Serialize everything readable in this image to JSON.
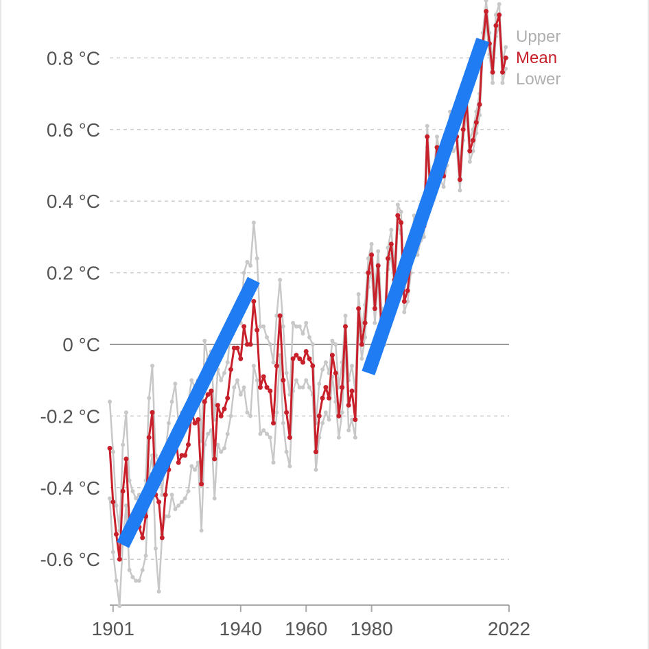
{
  "chart_data": {
    "type": "line",
    "x_ticks": [
      "1901",
      "1940",
      "1960",
      "1980",
      "2022"
    ],
    "y_ticks": [
      {
        "value": 0.8,
        "label": "0.8 °C"
      },
      {
        "value": 0.6,
        "label": "0.6 °C"
      },
      {
        "value": 0.4,
        "label": "0.4 °C"
      },
      {
        "value": 0.2,
        "label": "0.2 °C"
      },
      {
        "value": 0.0,
        "label": "0 °C"
      },
      {
        "value": -0.2,
        "label": "-0.2 °C"
      },
      {
        "value": -0.4,
        "label": "-0.4 °C"
      },
      {
        "value": -0.6,
        "label": "-0.6 °C"
      }
    ],
    "xlim": [
      1900,
      2022
    ],
    "ylim": [
      -0.73,
      0.95
    ],
    "grid": true,
    "legend_position": "right",
    "colors": {
      "mean": "#c8202a",
      "bounds": "#c8c8c8",
      "trend": "#1f7cf2",
      "zero_line": "#999999",
      "grid": "#cccccc"
    },
    "years_start": 1900,
    "mean": [
      -0.29,
      -0.44,
      -0.53,
      -0.6,
      -0.41,
      -0.32,
      -0.5,
      -0.52,
      -0.51,
      -0.51,
      -0.54,
      -0.48,
      -0.26,
      -0.19,
      -0.42,
      -0.44,
      -0.54,
      -0.42,
      -0.35,
      -0.27,
      -0.24,
      -0.33,
      -0.31,
      -0.31,
      -0.28,
      -0.19,
      -0.22,
      -0.21,
      -0.39,
      -0.16,
      -0.14,
      -0.13,
      -0.32,
      -0.17,
      -0.2,
      -0.18,
      -0.15,
      -0.07,
      -0.01,
      -0.01,
      -0.04,
      0.05,
      0.0,
      0.0,
      0.12,
      0.04,
      -0.12,
      -0.09,
      -0.12,
      -0.13,
      -0.22,
      -0.06,
      0.08,
      -0.1,
      -0.19,
      -0.26,
      -0.04,
      -0.03,
      -0.04,
      -0.05,
      -0.02,
      -0.04,
      -0.06,
      -0.3,
      -0.2,
      -0.15,
      -0.12,
      -0.15,
      -0.03,
      -0.08,
      -0.2,
      -0.12,
      0.05,
      -0.17,
      -0.13,
      -0.21,
      0.1,
      0.0,
      0.06,
      0.2,
      0.25,
      0.1,
      0.22,
      0.05,
      0.04,
      0.24,
      0.28,
      0.18,
      0.36,
      0.34,
      0.12,
      0.15,
      0.23,
      0.33,
      0.28,
      0.32,
      0.33,
      0.58,
      0.42,
      0.45,
      0.55,
      0.49,
      0.47,
      0.53,
      0.62,
      0.57,
      0.58,
      0.46,
      0.6,
      0.68,
      0.54,
      0.57,
      0.62,
      0.67,
      0.84,
      0.93,
      0.84,
      0.76,
      0.89,
      0.92,
      0.76,
      0.8
    ],
    "upper": [
      -0.16,
      -0.3,
      -0.45,
      -0.52,
      -0.28,
      -0.19,
      -0.38,
      -0.41,
      -0.43,
      -0.42,
      -0.45,
      -0.38,
      -0.15,
      -0.06,
      -0.31,
      -0.33,
      -0.42,
      -0.3,
      -0.22,
      -0.16,
      -0.11,
      -0.22,
      -0.19,
      -0.19,
      -0.16,
      -0.1,
      -0.12,
      -0.1,
      -0.27,
      0.01,
      -0.04,
      -0.02,
      -0.21,
      -0.07,
      -0.1,
      -0.08,
      -0.05,
      0.04,
      0.08,
      0.08,
      0.06,
      0.2,
      0.23,
      0.22,
      0.34,
      0.24,
      0.05,
      0.05,
      0.02,
      0.0,
      -0.05,
      0.08,
      0.18,
      0.05,
      -0.08,
      -0.14,
      0.06,
      0.05,
      0.05,
      0.03,
      0.06,
      0.02,
      0.0,
      -0.22,
      -0.11,
      -0.07,
      -0.05,
      -0.08,
      0.01,
      0.0,
      -0.12,
      -0.05,
      0.08,
      -0.1,
      -0.06,
      -0.13,
      0.14,
      0.04,
      0.11,
      0.24,
      0.28,
      0.15,
      0.26,
      0.1,
      0.08,
      0.27,
      0.32,
      0.21,
      0.39,
      0.37,
      0.16,
      0.18,
      0.26,
      0.36,
      0.32,
      0.36,
      0.36,
      0.61,
      0.46,
      0.48,
      0.58,
      0.52,
      0.5,
      0.56,
      0.65,
      0.6,
      0.61,
      0.49,
      0.63,
      0.71,
      0.57,
      0.6,
      0.65,
      0.7,
      0.87,
      0.96,
      0.87,
      0.79,
      0.92,
      0.95,
      0.79,
      0.83
    ],
    "lower": [
      -0.43,
      -0.58,
      -0.66,
      -0.73,
      -0.55,
      -0.45,
      -0.63,
      -0.65,
      -0.66,
      -0.66,
      -0.63,
      -0.59,
      -0.36,
      -0.31,
      -0.57,
      -0.69,
      -0.53,
      -0.48,
      -0.48,
      -0.42,
      -0.46,
      -0.45,
      -0.44,
      -0.43,
      -0.41,
      -0.34,
      -0.35,
      -0.33,
      -0.52,
      -0.28,
      -0.25,
      -0.24,
      -0.43,
      -0.28,
      -0.3,
      -0.29,
      -0.25,
      -0.2,
      -0.12,
      -0.1,
      -0.14,
      -0.12,
      -0.19,
      -0.2,
      -0.06,
      -0.1,
      -0.25,
      -0.24,
      -0.25,
      -0.26,
      -0.33,
      -0.19,
      -0.03,
      -0.22,
      -0.3,
      -0.34,
      -0.13,
      -0.1,
      -0.12,
      -0.12,
      -0.1,
      -0.12,
      -0.14,
      -0.35,
      -0.26,
      -0.22,
      -0.19,
      -0.21,
      -0.09,
      -0.16,
      -0.26,
      -0.19,
      0.0,
      -0.24,
      -0.21,
      -0.26,
      0.06,
      -0.04,
      0.02,
      0.16,
      0.21,
      0.06,
      0.18,
      0.01,
      0.0,
      0.21,
      0.25,
      0.15,
      0.33,
      0.31,
      0.09,
      0.12,
      0.2,
      0.3,
      0.25,
      0.29,
      0.3,
      0.55,
      0.39,
      0.42,
      0.52,
      0.46,
      0.44,
      0.5,
      0.59,
      0.54,
      0.55,
      0.43,
      0.57,
      0.65,
      0.51,
      0.54,
      0.59,
      0.64,
      0.81,
      0.9,
      0.81,
      0.73,
      0.86,
      0.89,
      0.73,
      0.77
    ],
    "series": [
      {
        "name": "Upper",
        "color": "#c8c8c8"
      },
      {
        "name": "Mean",
        "color": "#c8202a"
      },
      {
        "name": "Lower",
        "color": "#c8c8c8"
      }
    ],
    "trend_lines": [
      {
        "x": [
          1904,
          1944
        ],
        "y": [
          -0.56,
          0.18
        ]
      },
      {
        "x": [
          1979,
          2014
        ],
        "y": [
          -0.08,
          0.85
        ]
      }
    ]
  }
}
